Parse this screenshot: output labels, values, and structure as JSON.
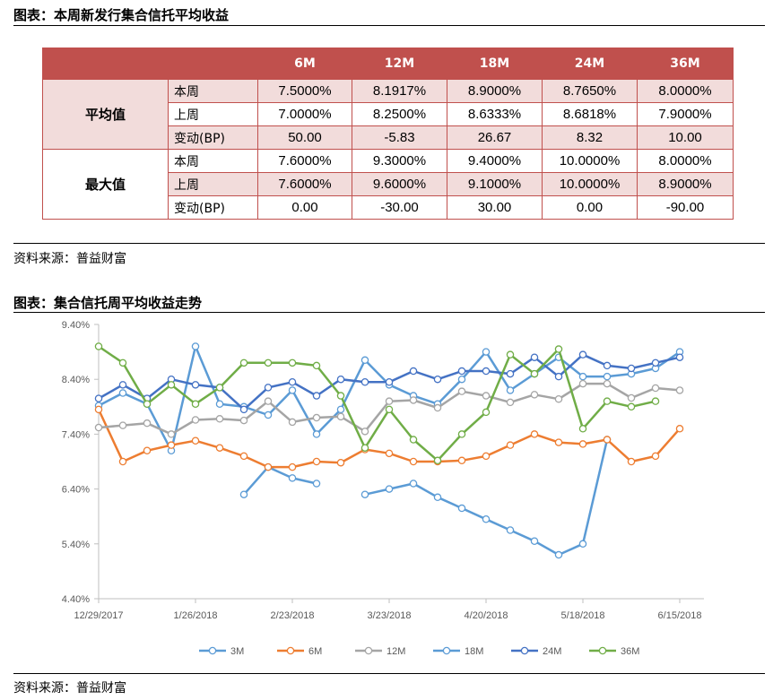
{
  "table_section": {
    "title": "图表：本周新发行集合信托平均收益",
    "source": "资料来源：普益财富"
  },
  "yield_table": {
    "columns": [
      "6M",
      "12M",
      "18M",
      "24M",
      "36M"
    ],
    "groups": [
      {
        "label": "平均值",
        "rows": [
          {
            "label": "本周",
            "values": [
              "7.5000%",
              "8.1917%",
              "8.9000%",
              "8.7650%",
              "8.0000%"
            ]
          },
          {
            "label": "上周",
            "values": [
              "7.0000%",
              "8.2500%",
              "8.6333%",
              "8.6818%",
              "7.9000%"
            ]
          },
          {
            "label": "变动(BP)",
            "values": [
              "50.00",
              "-5.83",
              "26.67",
              "8.32",
              "10.00"
            ]
          }
        ]
      },
      {
        "label": "最大值",
        "rows": [
          {
            "label": "本周",
            "values": [
              "7.6000%",
              "9.3000%",
              "9.4000%",
              "10.0000%",
              "8.0000%"
            ]
          },
          {
            "label": "上周",
            "values": [
              "7.6000%",
              "9.6000%",
              "9.1000%",
              "10.0000%",
              "8.9000%"
            ]
          },
          {
            "label": "变动(BP)",
            "values": [
              "0.00",
              "-30.00",
              "30.00",
              "0.00",
              "-90.00"
            ]
          }
        ]
      }
    ]
  },
  "chart_section": {
    "title": "图表：集合信托周平均收益走势",
    "source": "资料来源：普益财富"
  },
  "chart_data": {
    "type": "line",
    "title": "",
    "xlabel": "",
    "ylabel": "",
    "x": [
      "2017-12-29",
      "2018-01-05",
      "2018-01-12",
      "2018-01-19",
      "2018-01-26",
      "2018-02-02",
      "2018-02-09",
      "2018-02-16",
      "2018-02-23",
      "2018-03-02",
      "2018-03-09",
      "2018-03-16",
      "2018-03-23",
      "2018-03-30",
      "2018-04-06",
      "2018-04-13",
      "2018-04-20",
      "2018-04-27",
      "2018-05-04",
      "2018-05-11",
      "2018-05-18",
      "2018-05-25",
      "2018-06-01",
      "2018-06-08",
      "2018-06-15",
      "2018-06-22"
    ],
    "x_tick_labels": [
      "12/29/2017",
      "1/26/2018",
      "2/23/2018",
      "3/23/2018",
      "4/20/2018",
      "5/18/2018",
      "6/15/2018"
    ],
    "x_tick_indices": [
      0,
      4,
      8,
      12,
      16,
      20,
      24
    ],
    "y_ticks": [
      "4.40%",
      "5.40%",
      "6.40%",
      "7.40%",
      "8.40%",
      "9.40%"
    ],
    "ylim": [
      4.4,
      9.4
    ],
    "grid": false,
    "legend_position": "bottom",
    "series": [
      {
        "name": "3M",
        "color": "#5b9bd5",
        "values": [
          null,
          null,
          null,
          null,
          null,
          null,
          6.3,
          6.8,
          6.6,
          6.5,
          null,
          6.3,
          6.4,
          6.5,
          6.25,
          6.05,
          5.85,
          5.65,
          5.45,
          5.2,
          5.4,
          7.3,
          null,
          null,
          null,
          null
        ]
      },
      {
        "name": "18M",
        "color": "#5b9bd5",
        "values": [
          7.92,
          8.15,
          7.95,
          7.1,
          9.0,
          7.95,
          7.9,
          7.75,
          8.2,
          7.4,
          7.85,
          8.75,
          8.3,
          8.1,
          7.95,
          8.4,
          8.9,
          8.2,
          8.5,
          8.8,
          8.45,
          8.45,
          8.5,
          8.6,
          8.9,
          null
        ]
      },
      {
        "name": "6M",
        "color": "#ed7d31",
        "values": [
          7.85,
          6.9,
          7.1,
          7.2,
          7.28,
          7.15,
          7.0,
          6.8,
          6.8,
          6.9,
          6.88,
          7.12,
          7.05,
          6.9,
          6.9,
          6.92,
          7.0,
          7.2,
          7.4,
          7.25,
          7.22,
          7.3,
          6.9,
          7.0,
          7.5,
          null
        ]
      },
      {
        "name": "12M",
        "color": "#a5a5a5",
        "values": [
          7.52,
          7.56,
          7.6,
          7.4,
          7.66,
          7.68,
          7.65,
          8.0,
          7.62,
          7.7,
          7.72,
          7.45,
          8.0,
          8.02,
          7.88,
          8.18,
          8.1,
          7.98,
          8.12,
          8.04,
          8.32,
          8.32,
          8.06,
          8.24,
          8.2,
          null
        ]
      },
      {
        "name": "24M",
        "color": "#4472c4",
        "values": [
          8.05,
          8.3,
          8.05,
          8.4,
          8.3,
          8.25,
          7.85,
          8.25,
          8.35,
          8.1,
          8.4,
          8.35,
          8.35,
          8.55,
          8.4,
          8.55,
          8.55,
          8.5,
          8.8,
          8.45,
          8.85,
          8.65,
          8.6,
          8.7,
          8.8,
          null
        ]
      },
      {
        "name": "36M",
        "color": "#70ad47",
        "values": [
          9.0,
          8.7,
          7.95,
          8.3,
          7.95,
          8.25,
          8.7,
          8.7,
          8.7,
          8.65,
          8.1,
          7.15,
          7.85,
          7.3,
          6.92,
          7.4,
          7.8,
          8.85,
          8.5,
          8.95,
          7.5,
          8.0,
          7.9,
          8.0,
          null,
          null
        ]
      }
    ]
  }
}
